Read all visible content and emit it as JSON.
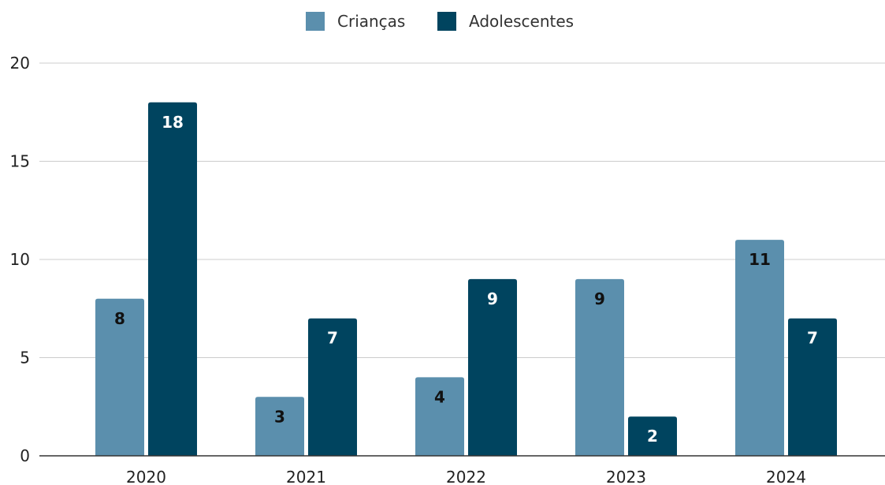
{
  "chart_data": {
    "type": "bar",
    "title": "",
    "xlabel": "",
    "ylabel": "",
    "categories": [
      "2020",
      "2021",
      "2022",
      "2023",
      "2024"
    ],
    "series": [
      {
        "name": "Crianças",
        "color": "#5b8fad",
        "label_color": "#111111",
        "values": [
          8,
          3,
          4,
          9,
          11
        ]
      },
      {
        "name": "Adolescentes",
        "color": "#00445f",
        "label_color": "#ffffff",
        "values": [
          18,
          7,
          9,
          2,
          7
        ]
      }
    ],
    "ylim": [
      0,
      20
    ],
    "yticks": [
      0,
      5,
      10,
      15,
      20
    ],
    "grid": true,
    "legend_position": "top-center",
    "data_labels": true
  }
}
